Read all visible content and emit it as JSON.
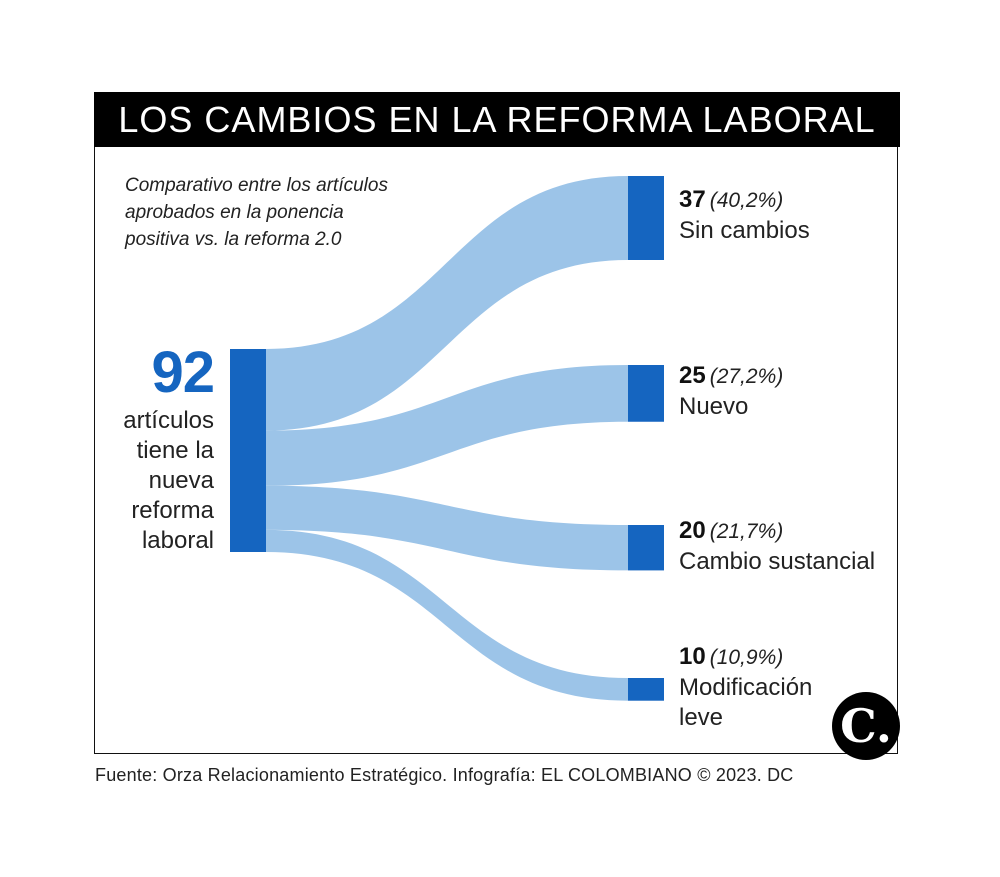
{
  "title": "LOS CAMBIOS EN LA REFORMA LABORAL",
  "subtitle_lines": [
    "Comparativo entre los artículos",
    "aprobados en la ponencia",
    "positiva vs. la reforma 2.0"
  ],
  "total": {
    "value": "92",
    "label_lines": [
      "artículos",
      "tiene la",
      "nueva",
      "reforma",
      "laboral"
    ]
  },
  "colors": {
    "node": "#1565c0",
    "flow": "#9cc4e8",
    "title_bg": "#000000"
  },
  "chart_data": {
    "type": "sankey",
    "title": "LOS CAMBIOS EN LA REFORMA LABORAL",
    "source": {
      "name": "92 artículos",
      "value": 92
    },
    "categories": [
      "Sin cambios",
      "Nuevo",
      "Cambio sustancial",
      "Modificación leve"
    ],
    "values": [
      37,
      25,
      20,
      10
    ],
    "percentages": [
      "40,2%",
      "27,2%",
      "21,7%",
      "10,9%"
    ],
    "labels": [
      {
        "count": "37",
        "pct": "(40,2%)",
        "name_lines": [
          "Sin cambios"
        ]
      },
      {
        "count": "25",
        "pct": "(27,2%)",
        "name_lines": [
          "Nuevo"
        ]
      },
      {
        "count": "20",
        "pct": "(21,7%)",
        "name_lines": [
          "Cambio sustancial"
        ]
      },
      {
        "count": "10",
        "pct": "(10,9%)",
        "name_lines": [
          "Modificación",
          "leve"
        ]
      }
    ]
  },
  "logo_text": "C.",
  "source_text": "Fuente: Orza Relacionamiento Estratégico. Infografía: EL COLOMBIANO © 2023. DC"
}
